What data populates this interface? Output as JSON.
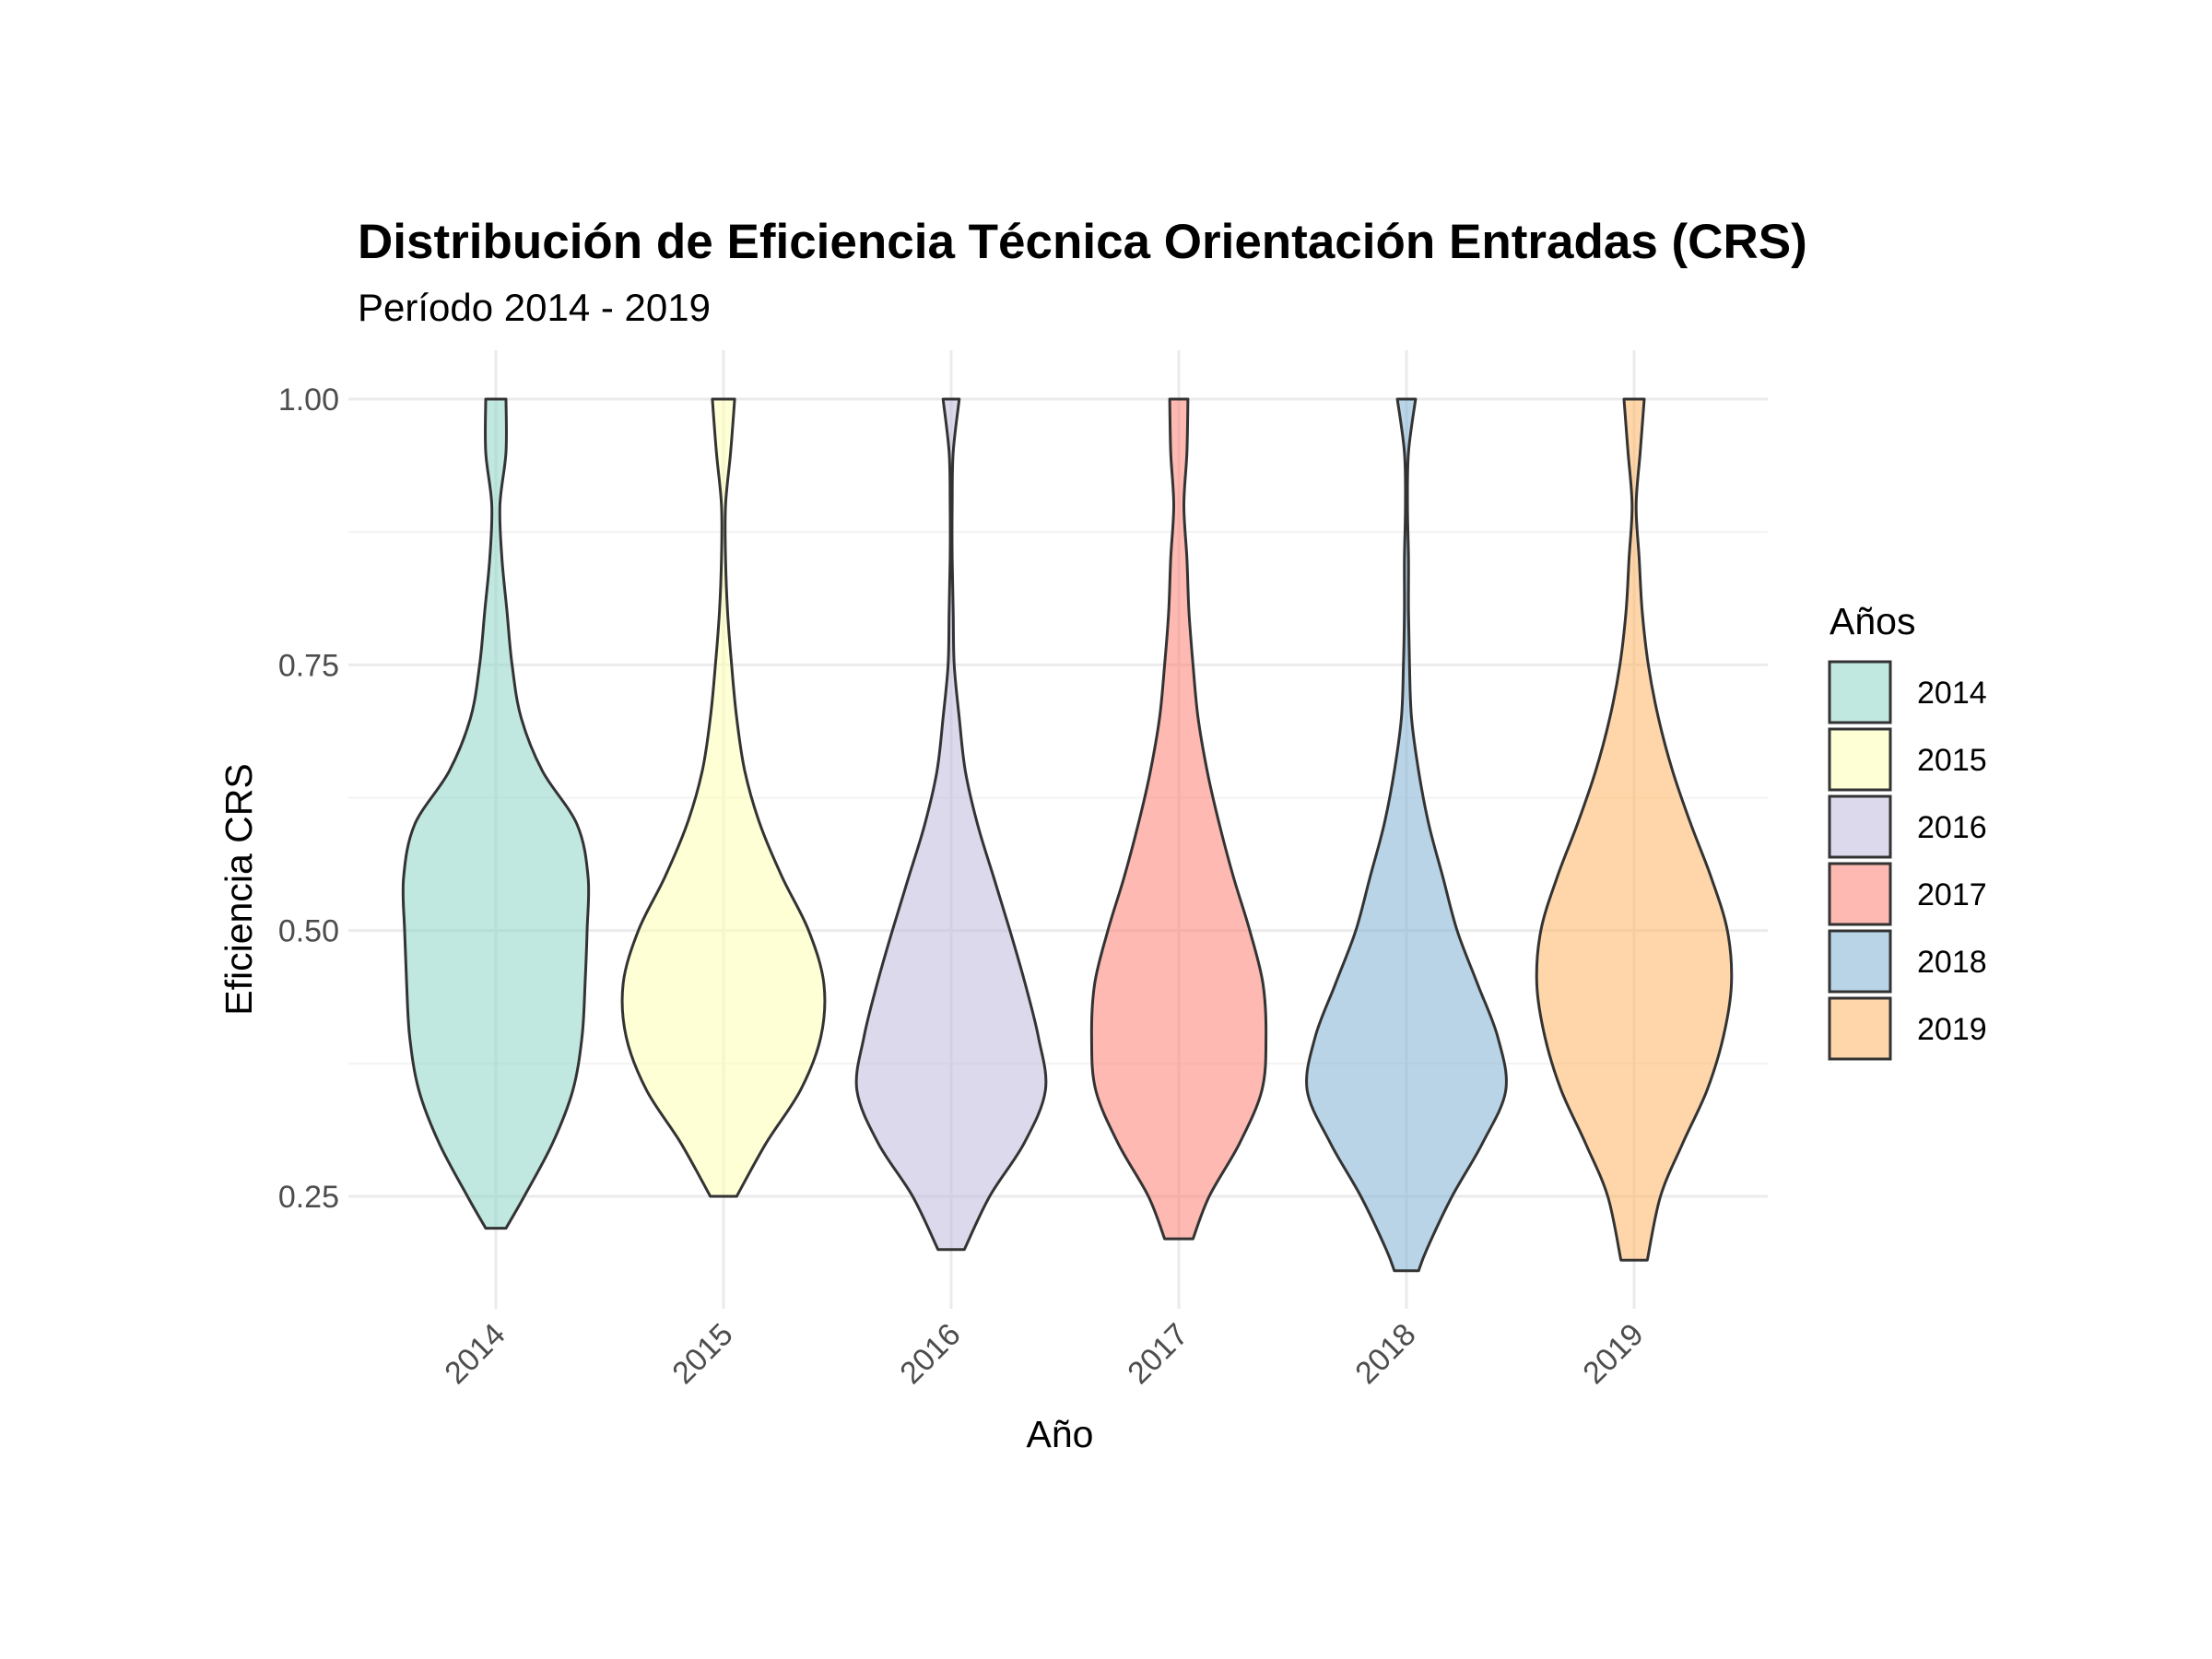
{
  "chart_data": {
    "type": "violin",
    "title": "Distribución de Eficiencia Técnica Orientación Entradas (CRS)",
    "subtitle": "Período 2014 - 2019",
    "xlabel": "Año",
    "ylabel": "Eficiencia CRS",
    "ylim": [
      0.15,
      1.02
    ],
    "yticks": [
      0.25,
      0.5,
      0.75,
      1.0
    ],
    "ytick_labels": [
      "0.25",
      "0.50",
      "0.75",
      "1.00"
    ],
    "categories": [
      "2014",
      "2015",
      "2016",
      "2017",
      "2018",
      "2019"
    ],
    "grid": true,
    "legend": {
      "title": "Años",
      "position": "right"
    },
    "series": [
      {
        "name": "2014",
        "color": "#8DD3C7",
        "min": 0.22,
        "max": 1.0,
        "y": [
          0.22,
          0.25,
          0.3,
          0.35,
          0.4,
          0.45,
          0.5,
          0.55,
          0.6,
          0.65,
          0.7,
          0.75,
          0.8,
          0.85,
          0.9,
          0.95,
          1.0
        ],
        "width": [
          0.1,
          0.28,
          0.56,
          0.76,
          0.85,
          0.88,
          0.9,
          0.91,
          0.8,
          0.46,
          0.25,
          0.16,
          0.11,
          0.06,
          0.04,
          0.1,
          0.1
        ]
      },
      {
        "name": "2015",
        "color": "#FFFFB3",
        "min": 0.25,
        "max": 1.0,
        "y": [
          0.25,
          0.3,
          0.35,
          0.4,
          0.45,
          0.5,
          0.55,
          0.6,
          0.65,
          0.7,
          0.75,
          0.8,
          0.85,
          0.9,
          0.95,
          1.0
        ],
        "width": [
          0.13,
          0.42,
          0.76,
          0.96,
          0.99,
          0.84,
          0.58,
          0.36,
          0.21,
          0.13,
          0.08,
          0.04,
          0.02,
          0.02,
          0.07,
          0.11
        ]
      },
      {
        "name": "2016",
        "color": "#BEBADA",
        "min": 0.2,
        "max": 1.0,
        "y": [
          0.2,
          0.25,
          0.3,
          0.35,
          0.4,
          0.45,
          0.5,
          0.55,
          0.6,
          0.65,
          0.7,
          0.75,
          0.8,
          0.85,
          0.9,
          0.95,
          1.0
        ],
        "width": [
          0.13,
          0.38,
          0.72,
          0.93,
          0.86,
          0.73,
          0.58,
          0.42,
          0.26,
          0.14,
          0.08,
          0.03,
          0.02,
          0.01,
          0.01,
          0.02,
          0.08
        ]
      },
      {
        "name": "2017",
        "color": "#FB8072",
        "min": 0.21,
        "max": 1.0,
        "y": [
          0.21,
          0.25,
          0.3,
          0.35,
          0.4,
          0.45,
          0.5,
          0.55,
          0.6,
          0.65,
          0.7,
          0.75,
          0.8,
          0.85,
          0.9,
          0.95,
          1.0
        ],
        "width": [
          0.14,
          0.3,
          0.6,
          0.82,
          0.86,
          0.83,
          0.7,
          0.54,
          0.4,
          0.28,
          0.19,
          0.14,
          0.1,
          0.08,
          0.05,
          0.08,
          0.09
        ]
      },
      {
        "name": "2018",
        "color": "#80B1D3",
        "min": 0.18,
        "max": 1.0,
        "y": [
          0.18,
          0.2,
          0.25,
          0.3,
          0.35,
          0.4,
          0.45,
          0.5,
          0.55,
          0.6,
          0.65,
          0.7,
          0.75,
          0.8,
          0.85,
          0.9,
          0.95,
          1.0
        ],
        "width": [
          0.12,
          0.2,
          0.45,
          0.75,
          0.98,
          0.9,
          0.7,
          0.5,
          0.36,
          0.22,
          0.12,
          0.05,
          0.03,
          0.02,
          0.02,
          0.01,
          0.02,
          0.09
        ]
      },
      {
        "name": "2019",
        "color": "#FDB462",
        "min": 0.19,
        "max": 1.0,
        "y": [
          0.19,
          0.25,
          0.3,
          0.35,
          0.4,
          0.45,
          0.5,
          0.55,
          0.6,
          0.65,
          0.7,
          0.75,
          0.8,
          0.85,
          0.9,
          0.95,
          1.0
        ],
        "width": [
          0.13,
          0.26,
          0.48,
          0.72,
          0.88,
          0.96,
          0.92,
          0.76,
          0.56,
          0.38,
          0.24,
          0.14,
          0.08,
          0.05,
          0.02,
          0.06,
          0.1
        ]
      }
    ]
  }
}
